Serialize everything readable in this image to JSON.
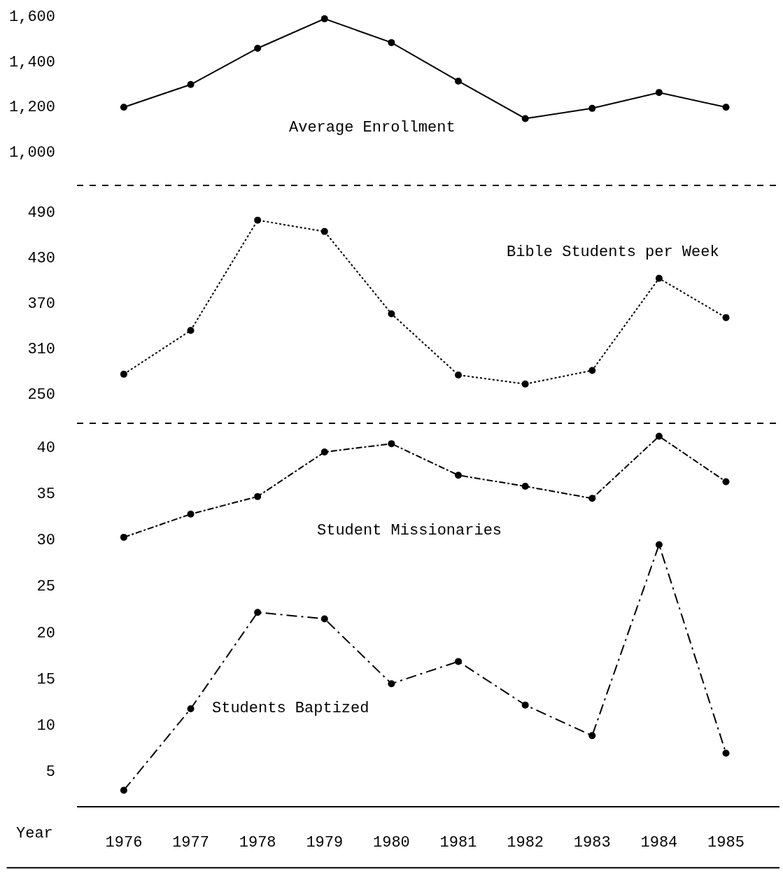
{
  "chart_data": [
    {
      "type": "line",
      "x": [
        1976,
        1977,
        1978,
        1979,
        1980,
        1981,
        1982,
        1983,
        1984,
        1985
      ],
      "xlim": [
        1975.3,
        1985.8
      ],
      "ylim": [
        850,
        1600
      ],
      "yticks": [
        {
          "value": 1000,
          "label": "1,000"
        },
        {
          "value": 1200,
          "label": "1,200"
        },
        {
          "value": 1400,
          "label": "1,400"
        },
        {
          "value": 1600,
          "label": "1,600"
        }
      ],
      "tick_labels": "y",
      "marker": "circle",
      "series": [
        {
          "name": "Average Enrollment",
          "color": "#000000",
          "line_style": "solid",
          "values": [
            1195,
            1295,
            1455,
            1585,
            1480,
            1310,
            1145,
            1190,
            1260,
            1195
          ]
        }
      ]
    },
    {
      "type": "line",
      "x": [
        1976,
        1977,
        1978,
        1979,
        1980,
        1981,
        1982,
        1983,
        1984,
        1985
      ],
      "xlim": [
        1975.3,
        1985.8
      ],
      "ylim": [
        210,
        525
      ],
      "yticks": [
        250,
        310,
        370,
        430,
        490
      ],
      "tick_labels": "y",
      "marker": "circle",
      "series": [
        {
          "name": "Bible Students per Week",
          "color": "#000000",
          "line_style": "dotted",
          "values": [
            275,
            333,
            479,
            464,
            355,
            274,
            262,
            280,
            402,
            350
          ]
        }
      ]
    },
    {
      "type": "line",
      "x": [
        1976,
        1977,
        1978,
        1979,
        1980,
        1981,
        1982,
        1983,
        1984,
        1985
      ],
      "xlim": [
        1975.3,
        1985.8
      ],
      "xticks": [
        1976,
        1977,
        1978,
        1979,
        1980,
        1981,
        1982,
        1983,
        1984,
        1985
      ],
      "xlabel": "Year",
      "ylim": [
        1.2,
        42.5
      ],
      "yticks": [
        5,
        10,
        15,
        20,
        25,
        30,
        35,
        40
      ],
      "marker": "circle",
      "series": [
        {
          "name": "Student Missionaries",
          "color": "#000000",
          "line_style": "dashdot",
          "values": [
            30.2,
            32.7,
            34.6,
            39.4,
            40.3,
            36.9,
            35.7,
            34.4,
            41.1,
            36.2
          ]
        },
        {
          "name": "Students Baptized",
          "color": "#000000",
          "line_style": "longdashdot",
          "values": [
            2.9,
            11.7,
            22.1,
            21.4,
            14.4,
            16.8,
            12.1,
            8.8,
            29.4,
            6.9
          ]
        }
      ]
    }
  ]
}
